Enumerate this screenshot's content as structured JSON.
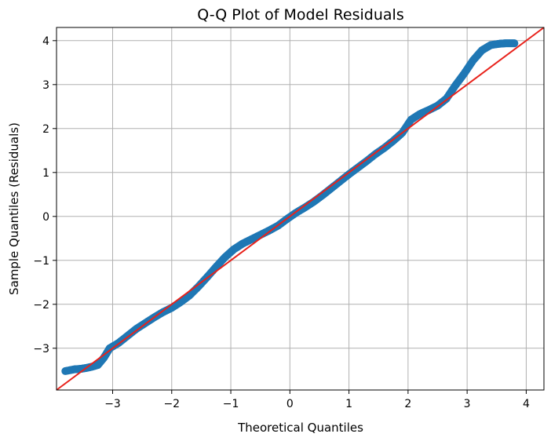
{
  "chart_data": {
    "type": "scatter",
    "title": "Q-Q Plot of Model Residuals",
    "xlabel": "Theoretical Quantiles",
    "ylabel": "Sample Quantiles (Residuals)",
    "xlim": [
      -3.95,
      4.3
    ],
    "ylim": [
      -3.95,
      4.3
    ],
    "x_ticks": [
      -3,
      -2,
      -1,
      0,
      1,
      2,
      3,
      4
    ],
    "y_ticks": [
      -3,
      -2,
      -1,
      0,
      1,
      2,
      3,
      4
    ],
    "x_tick_labels": [
      "−3",
      "−2",
      "−1",
      "0",
      "1",
      "2",
      "3",
      "4"
    ],
    "y_tick_labels": [
      "−3",
      "−2",
      "−1",
      "0",
      "1",
      "2",
      "3",
      "4"
    ],
    "grid": true,
    "point_color": "#1f77b4",
    "line_color": "#e8221b",
    "reference_line": {
      "slope": 1,
      "intercept": 0
    },
    "series": [
      {
        "points": [
          [
            -3.8,
            -3.52
          ],
          [
            -3.65,
            -3.48
          ],
          [
            -3.55,
            -3.47
          ],
          [
            -3.45,
            -3.45
          ],
          [
            -3.35,
            -3.42
          ],
          [
            -3.25,
            -3.38
          ],
          [
            -3.15,
            -3.22
          ],
          [
            -3.05,
            -3.0
          ],
          [
            -2.9,
            -2.88
          ],
          [
            -2.75,
            -2.72
          ],
          [
            -2.6,
            -2.56
          ],
          [
            -2.45,
            -2.43
          ],
          [
            -2.3,
            -2.3
          ],
          [
            -2.15,
            -2.18
          ],
          [
            -2.0,
            -2.08
          ],
          [
            -1.85,
            -1.95
          ],
          [
            -1.7,
            -1.8
          ],
          [
            -1.55,
            -1.6
          ],
          [
            -1.4,
            -1.38
          ],
          [
            -1.25,
            -1.15
          ],
          [
            -1.1,
            -0.93
          ],
          [
            -0.95,
            -0.75
          ],
          [
            -0.8,
            -0.62
          ],
          [
            -0.65,
            -0.52
          ],
          [
            -0.5,
            -0.42
          ],
          [
            -0.35,
            -0.32
          ],
          [
            -0.2,
            -0.21
          ],
          [
            -0.05,
            -0.06
          ],
          [
            0.1,
            0.08
          ],
          [
            0.25,
            0.2
          ],
          [
            0.4,
            0.33
          ],
          [
            0.55,
            0.48
          ],
          [
            0.7,
            0.64
          ],
          [
            0.85,
            0.8
          ],
          [
            1.0,
            0.96
          ],
          [
            1.15,
            1.11
          ],
          [
            1.3,
            1.26
          ],
          [
            1.45,
            1.42
          ],
          [
            1.6,
            1.56
          ],
          [
            1.75,
            1.72
          ],
          [
            1.9,
            1.9
          ],
          [
            2.05,
            2.2
          ],
          [
            2.2,
            2.33
          ],
          [
            2.35,
            2.42
          ],
          [
            2.5,
            2.52
          ],
          [
            2.65,
            2.68
          ],
          [
            2.8,
            2.98
          ],
          [
            2.95,
            3.25
          ],
          [
            3.1,
            3.55
          ],
          [
            3.25,
            3.78
          ],
          [
            3.4,
            3.9
          ],
          [
            3.55,
            3.93
          ],
          [
            3.65,
            3.94
          ],
          [
            3.8,
            3.94
          ]
        ]
      }
    ]
  }
}
